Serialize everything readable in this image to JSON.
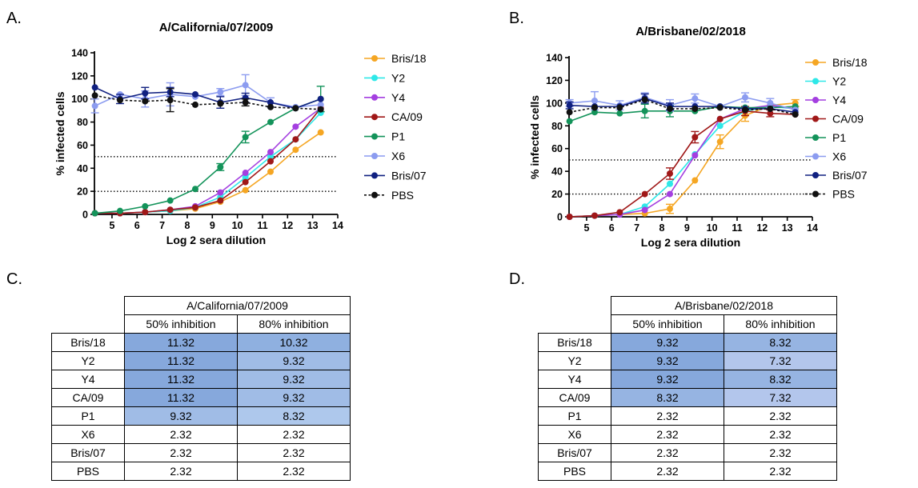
{
  "panels": [
    {
      "letter": "A."
    },
    {
      "letter": "B."
    },
    {
      "letter": "C."
    },
    {
      "letter": "D."
    }
  ],
  "chart_data": [
    {
      "type": "line",
      "title": "A/California/07/2009",
      "xlabel": "Log 2 sera dilution",
      "ylabel": "% infected cells",
      "xlim": [
        4.3,
        14
      ],
      "ylim": [
        0,
        140
      ],
      "xticks": [
        5,
        6,
        7,
        8,
        9,
        10,
        11,
        12,
        13,
        14
      ],
      "yticks": [
        0,
        20,
        40,
        60,
        80,
        100,
        120,
        140
      ],
      "reference_lines": [
        50,
        20
      ],
      "legend_position": "right",
      "x": [
        4.32,
        5.32,
        6.32,
        7.32,
        8.32,
        9.32,
        10.32,
        11.32,
        12.32,
        13.32
      ],
      "series": [
        {
          "name": "Bris/18",
          "color": "#f5a623",
          "dashed": false,
          "values": [
            1,
            1,
            2,
            3,
            5,
            11,
            21,
            37,
            56,
            71
          ]
        },
        {
          "name": "Y2",
          "color": "#2ee8e8",
          "dashed": false,
          "values": [
            1,
            1,
            2,
            3,
            6,
            15,
            32,
            50,
            65,
            88
          ]
        },
        {
          "name": "Y4",
          "color": "#a43fe0",
          "dashed": false,
          "values": [
            1,
            1,
            2,
            4,
            7,
            19,
            36,
            54,
            76,
            92
          ]
        },
        {
          "name": "CA/09",
          "color": "#a01818",
          "dashed": false,
          "values": [
            1,
            1,
            2,
            4,
            6,
            12,
            28,
            46,
            65,
            92
          ]
        },
        {
          "name": "P1",
          "color": "#13935a",
          "dashed": false,
          "values": [
            1,
            3,
            7,
            12,
            22,
            41,
            67,
            80,
            92,
            100
          ],
          "errors": [
            0,
            0,
            0,
            0,
            0,
            3,
            5,
            0,
            0,
            11
          ]
        },
        {
          "name": "X6",
          "color": "#8c9cf0",
          "dashed": false,
          "values": [
            94,
            104,
            100,
            104,
            102,
            106,
            112,
            97,
            93,
            95
          ],
          "errors": [
            6,
            0,
            7,
            10,
            0,
            3,
            9,
            4,
            0,
            0
          ]
        },
        {
          "name": "Bris/07",
          "color": "#102080",
          "dashed": false,
          "values": [
            110,
            100,
            105,
            106,
            104,
            97,
            101,
            97,
            92,
            100
          ],
          "errors": [
            0,
            4,
            5,
            4,
            0,
            5,
            4,
            0,
            0,
            0
          ]
        },
        {
          "name": "PBS",
          "color": "#111111",
          "dashed": true,
          "values": [
            103,
            99,
            98,
            99,
            95,
            96,
            97,
            93,
            92,
            91
          ],
          "errors": [
            0,
            0,
            0,
            10,
            0,
            0,
            3,
            0,
            0,
            0
          ]
        }
      ]
    },
    {
      "type": "line",
      "title": "A/Brisbane/02/2018",
      "xlabel": "Log 2 sera dilution",
      "ylabel": "% infected cells",
      "xlim": [
        4.3,
        14
      ],
      "ylim": [
        0,
        140
      ],
      "xticks": [
        5,
        6,
        7,
        8,
        9,
        10,
        11,
        12,
        13,
        14
      ],
      "yticks": [
        0,
        20,
        40,
        60,
        80,
        100,
        120,
        140
      ],
      "reference_lines": [
        50,
        20
      ],
      "legend_position": "right",
      "x": [
        4.32,
        5.32,
        6.32,
        7.32,
        8.32,
        9.32,
        10.32,
        11.32,
        12.32,
        13.32
      ],
      "series": [
        {
          "name": "Bris/18",
          "color": "#f5a623",
          "dashed": false,
          "values": [
            0,
            1,
            2,
            3,
            7,
            32,
            66,
            89,
            98,
            100
          ],
          "errors": [
            0,
            0,
            0,
            0,
            4,
            0,
            6,
            5,
            0,
            3
          ]
        },
        {
          "name": "Y2",
          "color": "#2ee8e8",
          "dashed": false,
          "values": [
            0,
            1,
            2,
            9,
            29,
            55,
            80,
            93,
            97,
            95
          ]
        },
        {
          "name": "Y4",
          "color": "#a43fe0",
          "dashed": false,
          "values": [
            0,
            1,
            2,
            6,
            20,
            54,
            86,
            95,
            98,
            95
          ]
        },
        {
          "name": "CA/09",
          "color": "#a01818",
          "dashed": false,
          "values": [
            0,
            1,
            4,
            20,
            38,
            70,
            86,
            93,
            91,
            90
          ],
          "errors": [
            0,
            0,
            0,
            0,
            5,
            5,
            0,
            4,
            3,
            0
          ]
        },
        {
          "name": "P1",
          "color": "#13935a",
          "dashed": false,
          "values": [
            84,
            92,
            91,
            93,
            93,
            93,
            97,
            96,
            96,
            97
          ],
          "errors": [
            0,
            0,
            0,
            6,
            5,
            0,
            0,
            0,
            0,
            0
          ]
        },
        {
          "name": "X6",
          "color": "#8c9cf0",
          "dashed": false,
          "values": [
            100,
            102,
            98,
            105,
            98,
            104,
            97,
            105,
            100,
            94
          ],
          "errors": [
            3,
            8,
            4,
            4,
            5,
            4,
            0,
            4,
            4,
            0
          ]
        },
        {
          "name": "Bris/07",
          "color": "#102080",
          "dashed": false,
          "values": [
            98,
            97,
            97,
            104,
            97,
            97,
            97,
            95,
            95,
            92
          ],
          "errors": [
            3,
            0,
            0,
            4,
            3,
            0,
            0,
            0,
            0,
            0
          ]
        },
        {
          "name": "PBS",
          "color": "#111111",
          "dashed": true,
          "values": [
            92,
            96,
            96,
            103,
            95,
            95,
            96,
            94,
            95,
            90
          ]
        }
      ]
    }
  ],
  "tables": [
    {
      "virus": "A/California/07/2009",
      "columns": [
        "50% inhibition",
        "80% inhibition"
      ],
      "rows": [
        {
          "name": "Bris/18",
          "v50": "11.32",
          "v80": "10.32"
        },
        {
          "name": "Y2",
          "v50": "11.32",
          "v80": "9.32"
        },
        {
          "name": "Y4",
          "v50": "11.32",
          "v80": "9.32"
        },
        {
          "name": "CA/09",
          "v50": "11.32",
          "v80": "9.32"
        },
        {
          "name": "P1",
          "v50": "9.32",
          "v80": "8.32"
        },
        {
          "name": "X6",
          "v50": "2.32",
          "v80": "2.32"
        },
        {
          "name": "Bris/07",
          "v50": "2.32",
          "v80": "2.32"
        },
        {
          "name": "PBS",
          "v50": "2.32",
          "v80": "2.32"
        }
      ],
      "shading": {
        "11.32": "#86a8dc",
        "10.32": "#8fb0e0",
        "9.32": "#a0bce6",
        "8.32": "#aec8ec",
        "2.32": "#ffffff"
      }
    },
    {
      "virus": "A/Brisbane/02/2018",
      "columns": [
        "50% inhibition",
        "80% inhibition"
      ],
      "rows": [
        {
          "name": "Bris/18",
          "v50": "9.32",
          "v80": "8.32"
        },
        {
          "name": "Y2",
          "v50": "9.32",
          "v80": "7.32"
        },
        {
          "name": "Y4",
          "v50": "9.32",
          "v80": "8.32"
        },
        {
          "name": "CA/09",
          "v50": "8.32",
          "v80": "7.32"
        },
        {
          "name": "P1",
          "v50": "2.32",
          "v80": "2.32"
        },
        {
          "name": "X6",
          "v50": "2.32",
          "v80": "2.32"
        },
        {
          "name": "Bris/07",
          "v50": "2.32",
          "v80": "2.32"
        },
        {
          "name": "PBS",
          "v50": "2.32",
          "v80": "2.32"
        }
      ],
      "shading": {
        "9.32": "#86a8dc",
        "8.32": "#96b4e2",
        "7.32": "#b3c6ec",
        "2.32": "#ffffff"
      }
    }
  ]
}
